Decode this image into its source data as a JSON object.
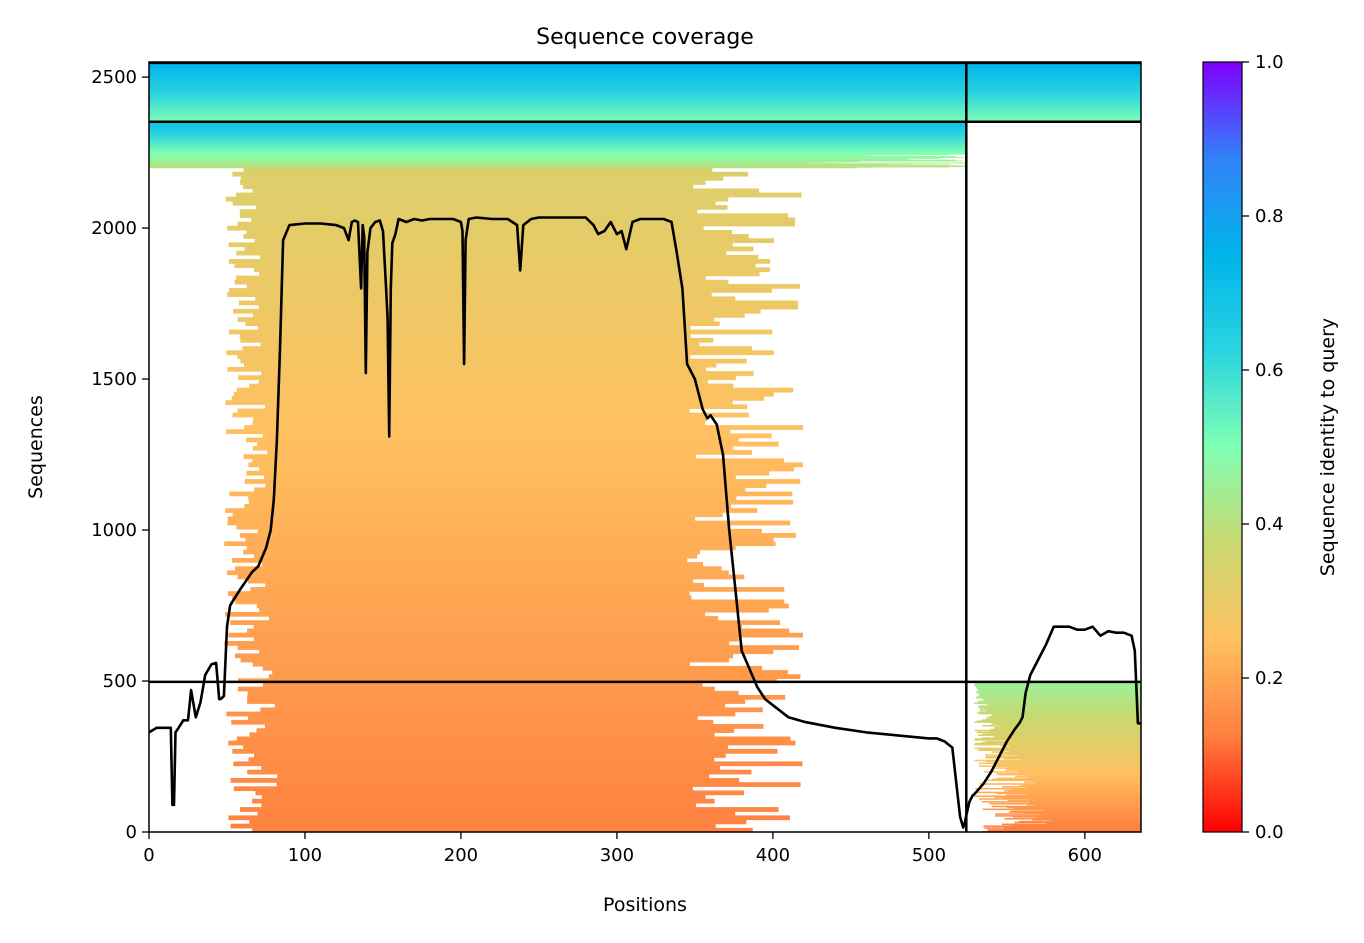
{
  "chart_data": {
    "type": "heatmap",
    "title": "Sequence coverage",
    "xlabel": "Positions",
    "ylabel": "Sequences",
    "xlim": [
      0,
      636
    ],
    "ylim": [
      0,
      2550
    ],
    "x_ticks": [
      0,
      100,
      200,
      300,
      400,
      500,
      600
    ],
    "x_tick_labels": [
      "0",
      "100",
      "200",
      "300",
      "400",
      "500",
      "600"
    ],
    "y_ticks": [
      0,
      500,
      1000,
      1500,
      2000,
      2500
    ],
    "y_tick_labels": [
      "0",
      "500",
      "1000",
      "1500",
      "2000",
      "2500"
    ],
    "grid": false,
    "colorbar": {
      "label": "Sequence identity to query",
      "colormap": "rainbow_r",
      "range": [
        0,
        1
      ],
      "ticks": [
        0.0,
        0.2,
        0.4,
        0.6,
        0.8,
        1.0
      ],
      "tick_labels": [
        "0.0",
        "0.2",
        "0.4",
        "0.6",
        "0.8",
        "1.0"
      ],
      "colors": [
        "#ff0000",
        "#ff7f3f",
        "#ffc060",
        "#c8d870",
        "#80ffb4",
        "#2ad4e0",
        "#00b4eb",
        "#3282f8",
        "#8000ff"
      ]
    },
    "dividers": {
      "x": [
        524
      ],
      "y": [
        497,
        2352,
        2547
      ]
    },
    "blocks": [
      {
        "name": "block-bottom-left",
        "x": [
          0,
          524
        ],
        "y": [
          0,
          497
        ],
        "identity_range": [
          0.15,
          0.15
        ],
        "filled": false
      },
      {
        "name": "block-main",
        "x": [
          85,
          345
        ],
        "y": [
          0,
          2200
        ],
        "x_extent_range": [
          [
            48,
            85
          ],
          [
            345,
            420
          ]
        ],
        "identity_range": [
          0.13,
          0.33
        ],
        "filled": true
      },
      {
        "name": "block-upper-left",
        "x": [
          0,
          524
        ],
        "y": [
          2200,
          2352
        ],
        "identity_range": [
          0.4,
          0.7
        ],
        "filled": true
      },
      {
        "name": "block-top-left",
        "x": [
          0,
          524
        ],
        "y": [
          2352,
          2547
        ],
        "identity_range": [
          0.5,
          0.75
        ],
        "filled": true
      },
      {
        "name": "block-top-right",
        "x": [
          524,
          636
        ],
        "y": [
          2352,
          2547
        ],
        "identity_range": [
          0.5,
          0.75
        ],
        "filled": true
      },
      {
        "name": "block-bottom-right",
        "x": [
          524,
          636
        ],
        "y": [
          0,
          497
        ],
        "identity_range": [
          0.12,
          0.45
        ],
        "filled": true
      }
    ],
    "series": [
      {
        "type": "line",
        "color": "#000000",
        "x": [
          0,
          5,
          10,
          14,
          15,
          16,
          17,
          19,
          22,
          25,
          27,
          30,
          33,
          36,
          40,
          43,
          45,
          46,
          48,
          50,
          52,
          55,
          58,
          62,
          66,
          70,
          75,
          78,
          80,
          82,
          84,
          86,
          90,
          100,
          110,
          120,
          125,
          128,
          130,
          132,
          134,
          136,
          137,
          138,
          139,
          140,
          142,
          145,
          148,
          150,
          152,
          153,
          154,
          155,
          156,
          158,
          160,
          165,
          170,
          175,
          180,
          185,
          190,
          195,
          200,
          201,
          202,
          203,
          205,
          210,
          220,
          230,
          236,
          238,
          240,
          245,
          250,
          260,
          270,
          280,
          285,
          288,
          292,
          296,
          300,
          303,
          306,
          310,
          315,
          320,
          330,
          335,
          338,
          342,
          345,
          350,
          355,
          358,
          360,
          364,
          368,
          372,
          376,
          380,
          385,
          390,
          395,
          400,
          410,
          420,
          440,
          460,
          480,
          500,
          505,
          510,
          515,
          520,
          522,
          523,
          524,
          526,
          528,
          530,
          535,
          540,
          545,
          550,
          555,
          558,
          560,
          562,
          565,
          570,
          575,
          580,
          585,
          590,
          595,
          600,
          605,
          610,
          615,
          620,
          625,
          630,
          632,
          634,
          636
        ],
        "y": [
          330,
          345,
          345,
          345,
          90,
          90,
          330,
          345,
          370,
          370,
          470,
          380,
          430,
          520,
          555,
          560,
          440,
          440,
          450,
          680,
          750,
          775,
          800,
          830,
          860,
          880,
          940,
          1000,
          1100,
          1300,
          1600,
          1960,
          2010,
          2015,
          2015,
          2010,
          2000,
          1960,
          2020,
          2025,
          2020,
          1800,
          2010,
          1970,
          1520,
          1920,
          2000,
          2020,
          2025,
          1990,
          1800,
          1700,
          1310,
          1800,
          1950,
          1980,
          2030,
          2020,
          2030,
          2025,
          2030,
          2030,
          2030,
          2030,
          2020,
          1990,
          1550,
          1960,
          2030,
          2035,
          2030,
          2030,
          2010,
          1860,
          2010,
          2030,
          2035,
          2035,
          2035,
          2035,
          2010,
          1980,
          1990,
          2020,
          1980,
          1990,
          1930,
          2020,
          2030,
          2030,
          2030,
          2020,
          1930,
          1800,
          1550,
          1500,
          1400,
          1370,
          1380,
          1350,
          1250,
          1000,
          800,
          600,
          540,
          480,
          440,
          420,
          380,
          365,
          345,
          330,
          320,
          310,
          310,
          300,
          280,
          50,
          15,
          30,
          55,
          100,
          120,
          130,
          160,
          200,
          250,
          300,
          340,
          360,
          380,
          460,
          520,
          570,
          620,
          680,
          680,
          680,
          670,
          670,
          680,
          650,
          665,
          660,
          660,
          650,
          600,
          360,
          360
        ]
      }
    ]
  }
}
